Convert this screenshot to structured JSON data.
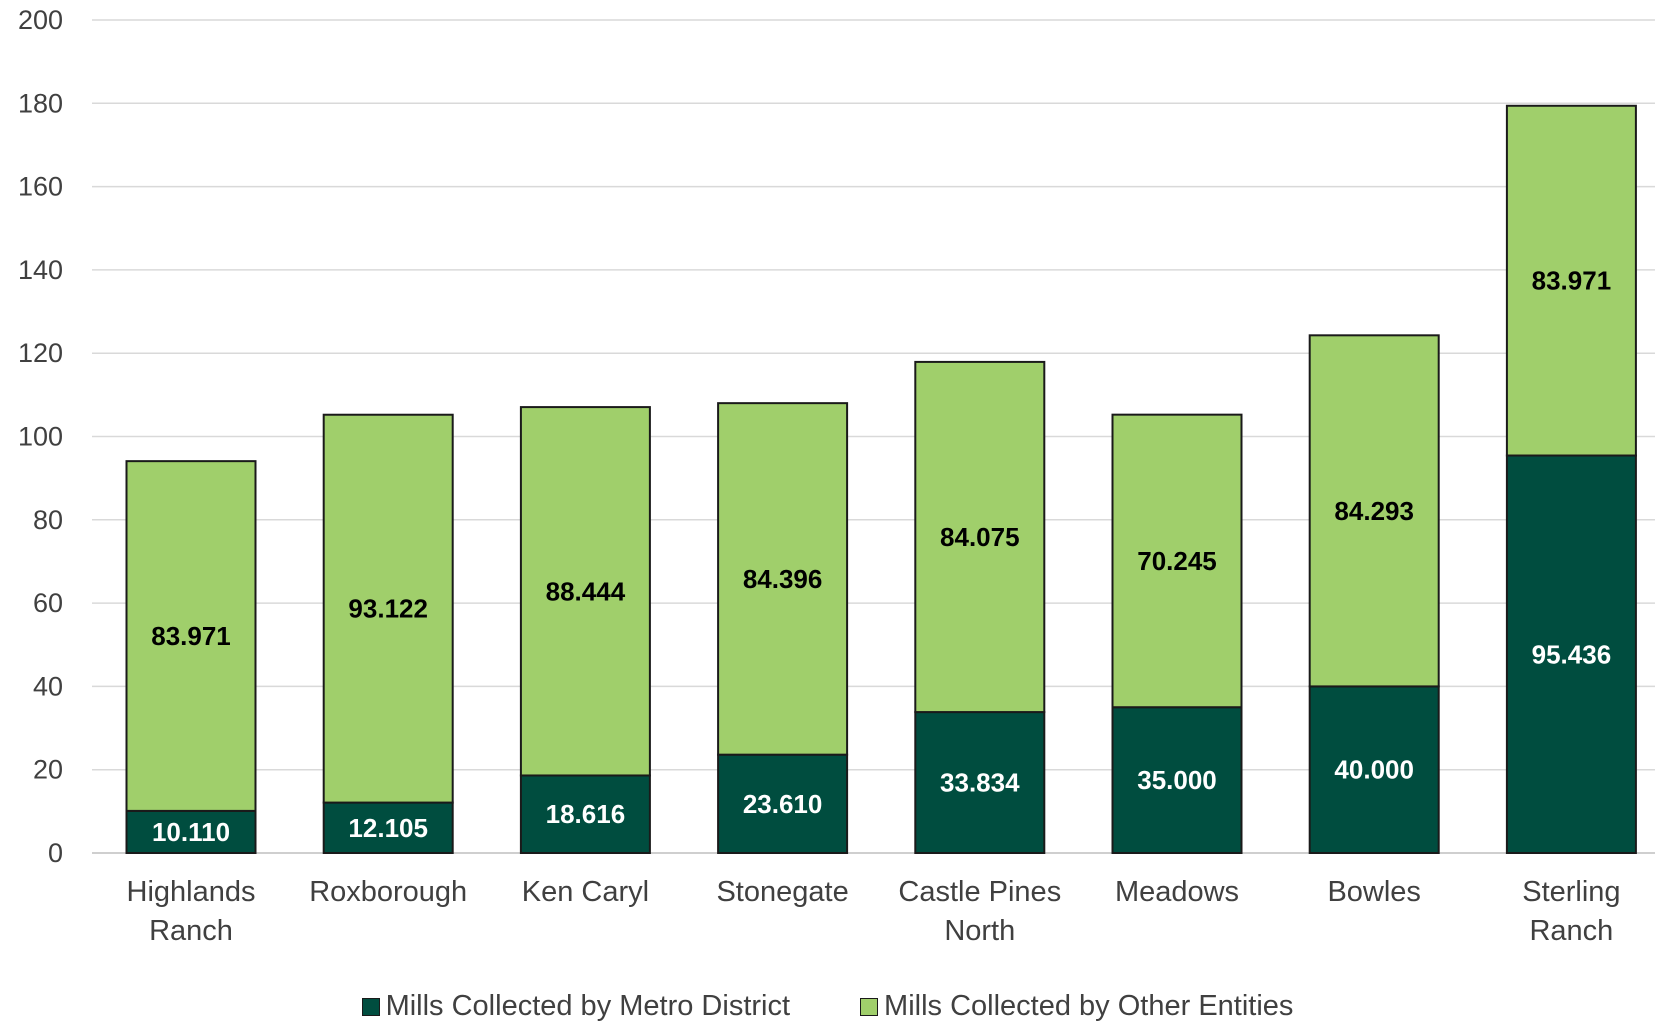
{
  "chart_data": {
    "type": "bar",
    "stacked": true,
    "title": "",
    "xlabel": "",
    "ylabel": "",
    "ylim": [
      0,
      200
    ],
    "yticks": [
      0,
      20,
      40,
      60,
      80,
      100,
      120,
      140,
      160,
      180,
      200
    ],
    "grid": true,
    "legend_position": "bottom",
    "categories": [
      [
        "Highlands",
        "Ranch"
      ],
      [
        "Roxborough"
      ],
      [
        "Ken Caryl"
      ],
      [
        "Stonegate"
      ],
      [
        "Castle Pines",
        "North"
      ],
      [
        "Meadows"
      ],
      [
        "Bowles"
      ],
      [
        "Sterling",
        "Ranch"
      ]
    ],
    "series": [
      {
        "name": "Mills Collected by Metro District",
        "color": "#004d3f",
        "label_color": "#ffffff",
        "values": [
          10.11,
          12.105,
          18.616,
          23.61,
          33.834,
          35.0,
          40.0,
          95.436
        ],
        "labels": [
          "10.110",
          "12.105",
          "18.616",
          "23.610",
          "33.834",
          "35.000",
          "40.000",
          "95.436"
        ]
      },
      {
        "name": "Mills Collected by Other Entities",
        "color": "#a0cf6b",
        "label_color": "#000000",
        "values": [
          83.971,
          93.122,
          88.444,
          84.396,
          84.075,
          70.245,
          84.293,
          83.971
        ],
        "labels": [
          "83.971",
          "93.122",
          "88.444",
          "84.396",
          "84.075",
          "70.245",
          "84.293",
          "83.971"
        ]
      }
    ]
  }
}
